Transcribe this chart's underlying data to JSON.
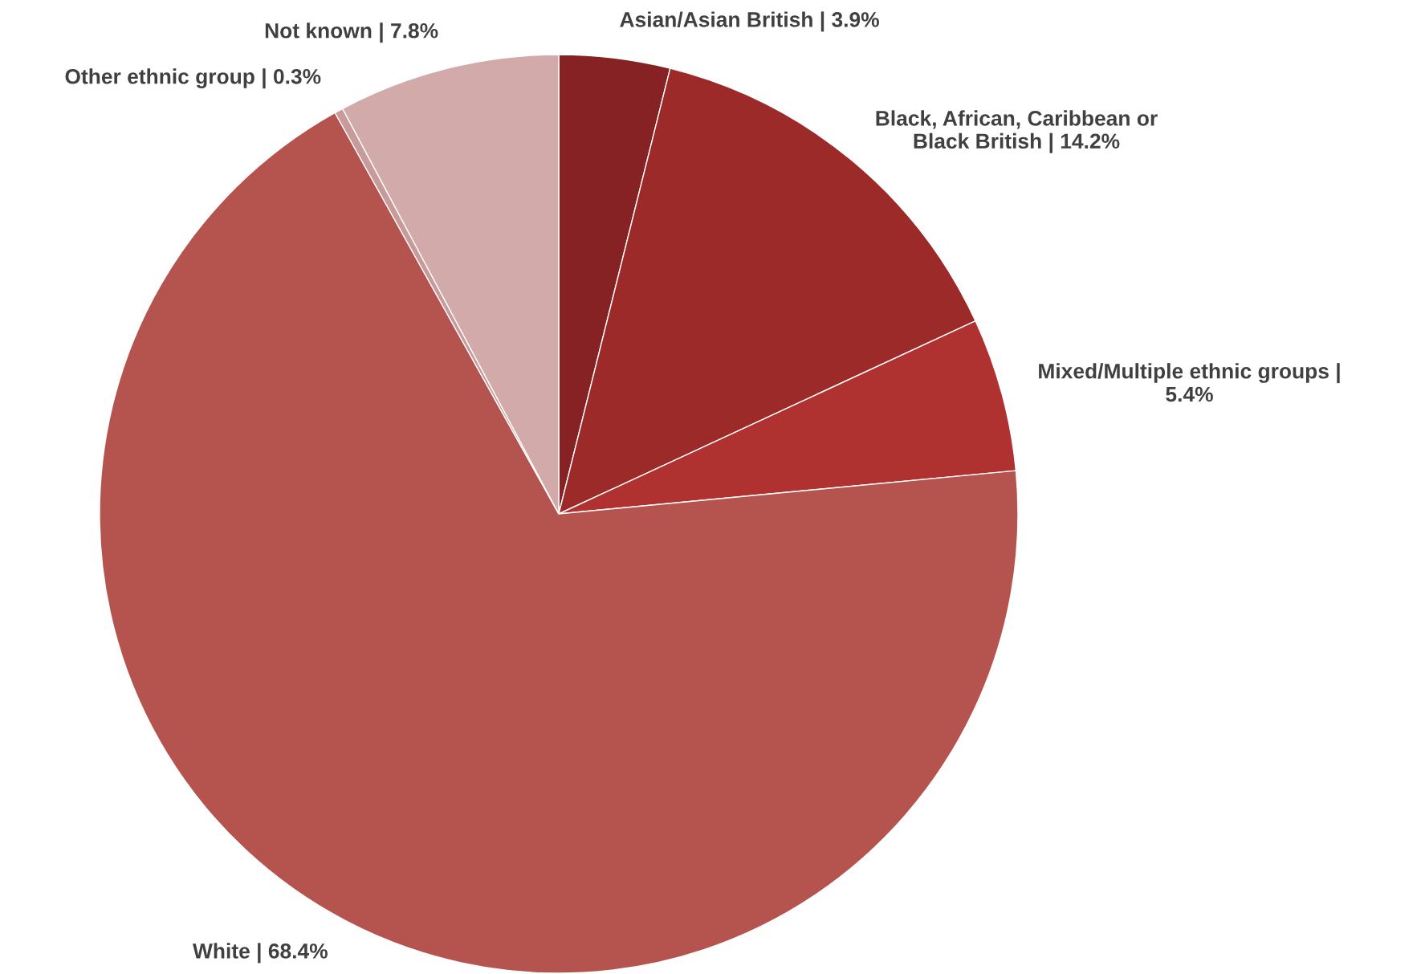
{
  "chart_data": {
    "type": "pie",
    "categories": [
      "Asian/Asian British",
      "Black, African, Caribbean or\nBlack British",
      "Mixed/Multiple ethnic groups",
      "White",
      "Other ethnic group",
      "Not known"
    ],
    "values": [
      3.9,
      14.2,
      5.4,
      68.4,
      0.3,
      7.8
    ],
    "value_labels": [
      "| 3.9%",
      "| 14.2%",
      "|\n5.4%",
      "| 68.4%",
      "| 0.3%",
      "| 7.8%"
    ],
    "colors": [
      "#862224",
      "#9c2a29",
      "#b03230",
      "#b5534f",
      "#c89a9a",
      "#d2aaaa"
    ],
    "legend": false
  }
}
